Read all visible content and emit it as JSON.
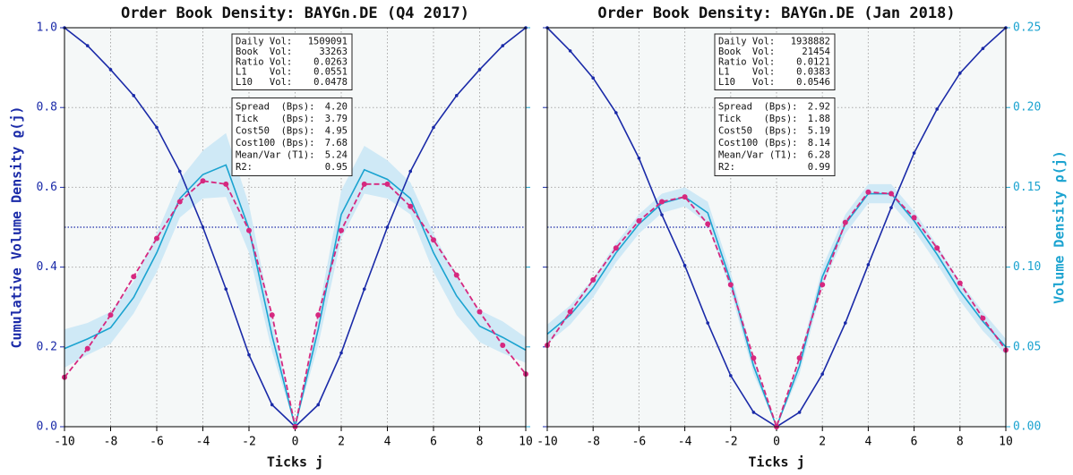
{
  "chart_data": [
    {
      "type": "line",
      "title": "Order Book Density: BAYGn.DE (Q4 2017)",
      "xlabel": "Ticks j",
      "ylabel": "Cumulative Volume Density ϱ(j)",
      "x": [
        -10,
        -9,
        -8,
        -7,
        -6,
        -5,
        -4,
        -3,
        -2,
        -1,
        0,
        1,
        2,
        3,
        4,
        5,
        6,
        7,
        8,
        9,
        10
      ],
      "xlim": [
        -10,
        10
      ],
      "xticks": [
        -10,
        -8,
        -6,
        -4,
        -2,
        0,
        2,
        4,
        6,
        8,
        10
      ],
      "ylim": [
        0,
        1
      ],
      "yticks": [
        {
          "value": 0,
          "label": "0.0"
        },
        0.2,
        0.4,
        0.6,
        0.8,
        {
          "value": 1,
          "label": "1.0"
        }
      ],
      "y2lim": [
        0,
        0.25
      ],
      "y2ticks": [
        {
          "value": 0,
          "label": "0.00"
        },
        0.05,
        {
          "value": 0.1,
          "label": "0.10"
        },
        0.15,
        {
          "value": 0.2,
          "label": "0.20"
        },
        0.25
      ],
      "tick_labels": "y",
      "grid": true,
      "hline": 0.5,
      "series": [
        {
          "color": "#1a2aa8",
          "style": "solid",
          "axis": "y",
          "values": [
            1.0,
            0.955,
            0.895,
            0.83,
            0.75,
            0.64,
            0.5,
            0.345,
            0.18,
            0.055,
            0,
            0.055,
            0.185,
            0.345,
            0.5,
            0.64,
            0.75,
            0.83,
            0.895,
            0.955,
            1.0
          ]
        },
        {
          "color": "#1ba3d0",
          "style": "solid",
          "axis": "y2",
          "band_color": "#cfe9f6",
          "values": [
            0.049,
            0.055,
            0.062,
            0.081,
            0.109,
            0.143,
            0.158,
            0.164,
            0.124,
            0.057,
            0,
            0.061,
            0.133,
            0.161,
            0.155,
            0.143,
            0.109,
            0.082,
            0.063,
            0.056,
            0.048
          ],
          "errors": [
            0.012,
            0.01,
            0.01,
            0.01,
            0.012,
            0.012,
            0.015,
            0.02,
            0.015,
            0.01,
            0,
            0.01,
            0.015,
            0.015,
            0.012,
            0.01,
            0.012,
            0.012,
            0.01,
            0.01,
            0.008
          ]
        },
        {
          "color": "#d6287f",
          "style": "dashed",
          "axis": "y2",
          "values": [
            0.031,
            0.049,
            0.07,
            0.094,
            0.118,
            0.141,
            0.154,
            0.152,
            0.123,
            0.07,
            0,
            0.07,
            0.123,
            0.152,
            0.152,
            0.138,
            0.117,
            0.095,
            0.072,
            0.051,
            0.033
          ]
        }
      ],
      "boxes": [
        [
          [
            "Daily Vol:",
            "1509091"
          ],
          [
            "Book  Vol:",
            "33263"
          ],
          [
            "Ratio Vol:",
            "0.0263"
          ],
          [
            "L1    Vol:",
            "0.0551"
          ],
          [
            "L10   Vol:",
            "0.0478"
          ]
        ],
        [
          [
            "Spread  (Bps):",
            "4.20"
          ],
          [
            "Tick    (Bps):",
            "3.79"
          ],
          [
            "Cost50  (Bps):",
            "4.95"
          ],
          [
            "Cost100 (Bps):",
            "7.68"
          ],
          [
            "Mean/Var (T1):",
            "5.24"
          ],
          [
            "R2:",
            "0.95"
          ]
        ]
      ]
    },
    {
      "type": "line",
      "title": "Order Book Density: BAYGn.DE (Jan 2018)",
      "xlabel": "Ticks j",
      "y2label": "Volume Density ρ(j)",
      "x": [
        -10,
        -9,
        -8,
        -7,
        -6,
        -5,
        -4,
        -3,
        -2,
        -1,
        0,
        1,
        2,
        3,
        4,
        5,
        6,
        7,
        8,
        9,
        10
      ],
      "xlim": [
        -10,
        10
      ],
      "xticks": [
        -10,
        -8,
        -6,
        -4,
        -2,
        0,
        2,
        4,
        6,
        8,
        10
      ],
      "ylim": [
        0,
        1
      ],
      "yticks": [
        {
          "value": 0,
          "label": "0.0"
        },
        0.2,
        0.4,
        0.6,
        0.8,
        {
          "value": 1,
          "label": "1.0"
        }
      ],
      "y2lim": [
        0,
        0.25
      ],
      "y2ticks": [
        {
          "value": 0,
          "label": "0.00"
        },
        0.05,
        {
          "value": 0.1,
          "label": "0.10"
        },
        0.15,
        {
          "value": 0.2,
          "label": "0.20"
        },
        0.25
      ],
      "tick_labels": "y2",
      "grid": true,
      "hline": 0.5,
      "series": [
        {
          "color": "#1a2aa8",
          "style": "solid",
          "axis": "y",
          "values": [
            1.0,
            0.942,
            0.874,
            0.787,
            0.673,
            0.531,
            0.404,
            0.26,
            0.128,
            0.036,
            0,
            0.036,
            0.132,
            0.26,
            0.406,
            0.549,
            0.686,
            0.796,
            0.886,
            0.948,
            1.0
          ]
        },
        {
          "color": "#1ba3d0",
          "style": "solid",
          "axis": "y2",
          "band_color": "#cfe9f6",
          "values": [
            0.058,
            0.07,
            0.087,
            0.109,
            0.127,
            0.14,
            0.144,
            0.134,
            0.091,
            0.038,
            0,
            0.038,
            0.094,
            0.127,
            0.146,
            0.146,
            0.129,
            0.108,
            0.085,
            0.066,
            0.05
          ],
          "errors": [
            0.006,
            0.006,
            0.006,
            0.006,
            0.006,
            0.006,
            0.006,
            0.007,
            0.006,
            0.005,
            0,
            0.005,
            0.006,
            0.006,
            0.006,
            0.006,
            0.006,
            0.006,
            0.006,
            0.006,
            0.005
          ]
        },
        {
          "color": "#d6287f",
          "style": "dashed",
          "axis": "y2",
          "values": [
            0.051,
            0.072,
            0.092,
            0.112,
            0.129,
            0.141,
            0.144,
            0.127,
            0.089,
            0.043,
            0,
            0.043,
            0.089,
            0.128,
            0.147,
            0.146,
            0.131,
            0.112,
            0.09,
            0.068,
            0.048
          ]
        }
      ],
      "boxes": [
        [
          [
            "Daily Vol:",
            "1938882"
          ],
          [
            "Book  Vol:",
            "21454"
          ],
          [
            "Ratio Vol:",
            "0.0121"
          ],
          [
            "L1    Vol:",
            "0.0383"
          ],
          [
            "L10   Vol:",
            "0.0546"
          ]
        ],
        [
          [
            "Spread  (Bps):",
            "2.92"
          ],
          [
            "Tick    (Bps):",
            "1.88"
          ],
          [
            "Cost50  (Bps):",
            "5.19"
          ],
          [
            "Cost100 (Bps):",
            "8.14"
          ],
          [
            "Mean/Var (T1):",
            "6.28"
          ],
          [
            "R2:",
            "0.99"
          ]
        ]
      ]
    }
  ]
}
